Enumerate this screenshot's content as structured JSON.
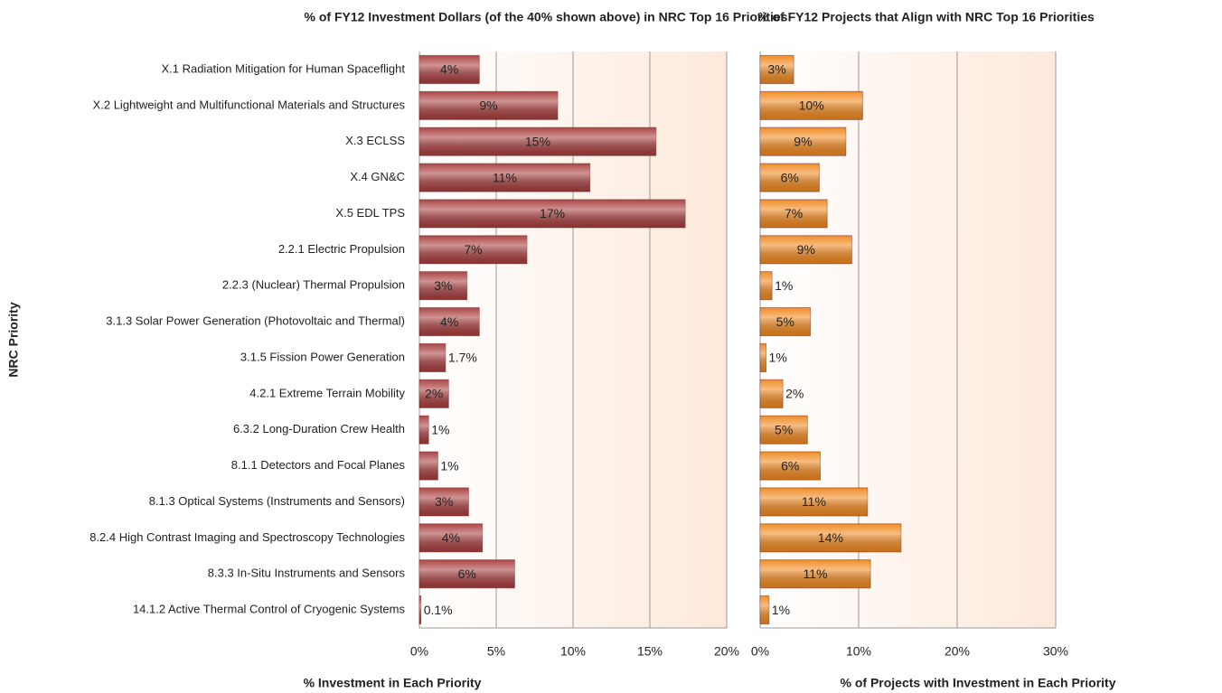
{
  "chart_data": [
    {
      "type": "bar",
      "orientation": "horizontal",
      "title": "% of FY12 Investment Dollars (of the 40% shown above) in NRC Top 16 Priorities",
      "x_label": "% Investment in Each Priority",
      "y_label": "NRC Priority",
      "categories": [
        "X.1 Radiation Mitigation for Human Spaceflight",
        "X.2 Lightweight and Multifunctional Materials and Structures",
        "X.3 ECLSS",
        "X.4 GN&C",
        "X.5 EDL TPS",
        "2.2.1 Electric Propulsion",
        "2.2.3 (Nuclear) Thermal Propulsion",
        "3.1.3 Solar Power Generation (Photovoltaic and Thermal)",
        "3.1.5 Fission Power Generation",
        "4.2.1 Extreme Terrain Mobility",
        "6.3.2 Long-Duration Crew Health",
        "8.1.1 Detectors and Focal Planes",
        "8.1.3 Optical Systems (Instruments and Sensors)",
        "8.2.4 High Contrast Imaging and Spectroscopy Technologies",
        "8.3.3 In-Situ Instruments and Sensors",
        "14.1.2 Active Thermal Control of Cryogenic Systems"
      ],
      "values": [
        3.9,
        9.0,
        15.4,
        11.1,
        17.3,
        7.0,
        3.1,
        3.9,
        1.7,
        1.9,
        0.6,
        1.2,
        3.2,
        4.1,
        6.2,
        0.1
      ],
      "value_labels": [
        "4%",
        "9%",
        "15%",
        "11%",
        "17%",
        "7%",
        "3%",
        "4%",
        "1.7%",
        "2%",
        "1%",
        "1%",
        "3%",
        "4%",
        "6%",
        "0.1%"
      ],
      "color": "#a83c3c",
      "xlim": [
        0,
        20
      ],
      "xticks": [
        {
          "value": 0,
          "label": "0%"
        },
        {
          "value": 5,
          "label": "5%"
        },
        {
          "value": 10,
          "label": "10%"
        },
        {
          "value": 15,
          "label": "15%"
        },
        {
          "value": 20,
          "label": "20%"
        }
      ],
      "grid": true
    },
    {
      "type": "bar",
      "orientation": "horizontal",
      "title": "% of FY12 Projects that Align with NRC Top 16 Priorities",
      "x_label": "% of Projects with Investment in Each Priority",
      "values": [
        3.4,
        10.4,
        8.7,
        6.0,
        6.8,
        9.3,
        1.2,
        5.1,
        0.6,
        2.3,
        4.8,
        6.1,
        10.9,
        14.3,
        11.2,
        0.9
      ],
      "value_labels": [
        "3%",
        "10%",
        "9%",
        "6%",
        "7%",
        "9%",
        "1%",
        "5%",
        "1%",
        "2%",
        "5%",
        "6%",
        "11%",
        "14%",
        "11%",
        "1%"
      ],
      "color": "#f0871c",
      "xlim": [
        0,
        30
      ],
      "xticks": [
        {
          "value": 0,
          "label": "0%"
        },
        {
          "value": 10,
          "label": "10%"
        },
        {
          "value": 20,
          "label": "20%"
        },
        {
          "value": 30,
          "label": "30%"
        }
      ],
      "grid": true
    }
  ]
}
